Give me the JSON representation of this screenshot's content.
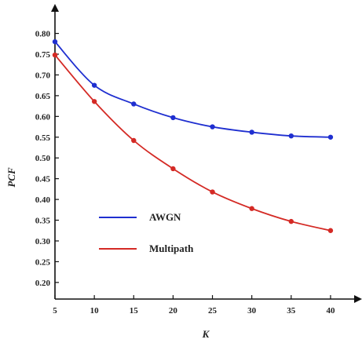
{
  "chart_data": {
    "type": "line",
    "title": "",
    "xlabel": "K",
    "ylabel": "PCF",
    "x": [
      5,
      10,
      15,
      20,
      25,
      30,
      35,
      40
    ],
    "x_ticks": [
      "5",
      "10",
      "15",
      "20",
      "25",
      "30",
      "35",
      "40"
    ],
    "y_ticks": [
      "0.80",
      "0.75",
      "0.70",
      "0.65",
      "0.60",
      "0.55",
      "0.50",
      "0.45",
      "0.40",
      "0.35",
      "0.30",
      "0.25",
      "0.20"
    ],
    "y_tick_values": [
      0.8,
      0.75,
      0.7,
      0.65,
      0.6,
      0.55,
      0.5,
      0.45,
      0.4,
      0.35,
      0.3,
      0.25,
      0.2
    ],
    "xlim": [
      5,
      42
    ],
    "ylim": [
      0.16,
      0.82
    ],
    "grid": false,
    "legend_position": "lower-left",
    "series": [
      {
        "name": "AWGN",
        "color": "#1f2fd0",
        "values": [
          0.78,
          0.675,
          0.63,
          0.597,
          0.575,
          0.562,
          0.553,
          0.55
        ]
      },
      {
        "name": "Multipath",
        "color": "#d42a25",
        "values": [
          0.748,
          0.636,
          0.542,
          0.474,
          0.418,
          0.378,
          0.347,
          0.325
        ]
      }
    ]
  }
}
